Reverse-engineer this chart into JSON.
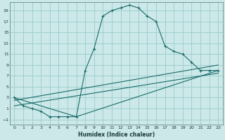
{
  "xlabel": "Humidex (Indice chaleur)",
  "bg_color": "#cce8e8",
  "grid_color": "#99cccc",
  "line_color": "#1a6b6b",
  "xlim": [
    -0.5,
    23.5
  ],
  "ylim": [
    -2.0,
    20.5
  ],
  "xticks": [
    0,
    1,
    2,
    3,
    4,
    5,
    6,
    7,
    8,
    9,
    10,
    11,
    12,
    13,
    14,
    15,
    16,
    17,
    18,
    19,
    20,
    21,
    22,
    23
  ],
  "yticks": [
    -1,
    1,
    3,
    5,
    7,
    9,
    11,
    13,
    15,
    17,
    19
  ],
  "curve_main_x": [
    0,
    1,
    2,
    3,
    4,
    5,
    6,
    7,
    8,
    9,
    10,
    11,
    12,
    13,
    14,
    15,
    16,
    17,
    18,
    19,
    20,
    21,
    22,
    23
  ],
  "curve_main_y": [
    3.0,
    1.5,
    1.0,
    0.5,
    -0.5,
    -0.5,
    -0.5,
    -0.5,
    8.0,
    12.0,
    18.0,
    19.0,
    19.5,
    20.0,
    19.5,
    18.0,
    17.0,
    12.5,
    11.5,
    11.0,
    9.5,
    8.0,
    8.0,
    8.0
  ],
  "line1_x": [
    0,
    7,
    23
  ],
  "line1_y": [
    3.0,
    -0.5,
    8.0
  ],
  "line2_x": [
    0,
    23
  ],
  "line2_y": [
    2.5,
    9.0
  ],
  "line3_x": [
    0,
    23
  ],
  "line3_y": [
    1.5,
    7.5
  ]
}
